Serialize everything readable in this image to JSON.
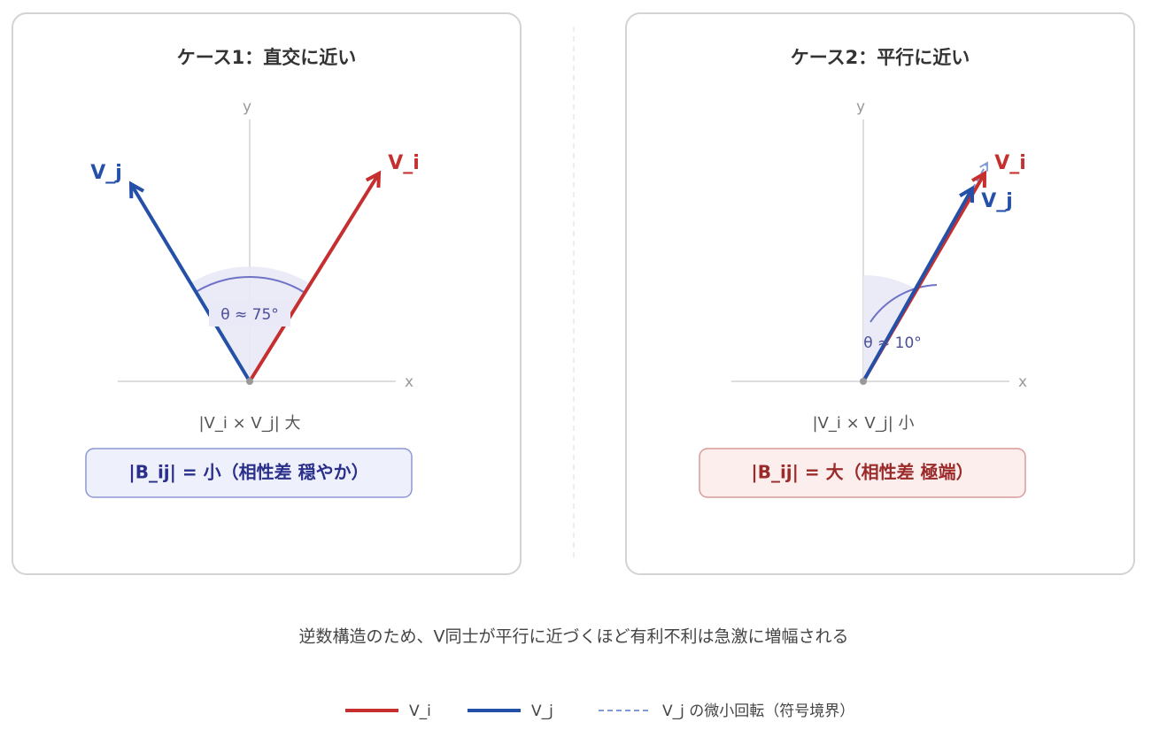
{
  "panels": [
    {
      "title": "ケース1：直交に近い",
      "axis_x": "x",
      "axis_y": "y",
      "vector_i": "V_i",
      "vector_j": "V_j",
      "angle": "θ ≈ 75°",
      "cross": "|V_i × V_j| 大",
      "result": "|B_ij| = 小（相性差 穏やか）"
    },
    {
      "title": "ケース2：平行に近い",
      "axis_x": "x",
      "axis_y": "y",
      "vector_i": "V_i",
      "vector_j": "V_j",
      "angle": "θ ≈ 10°",
      "cross": "|V_i × V_j| 小",
      "result": "|B_ij| = 大（相性差 極端）"
    }
  ],
  "caption": "逆数構造のため、V同士が平行に近づくほど有利不利は急激に増幅される",
  "legend": [
    "V_i",
    "V_j",
    "V_j の微小回転（符号境界）"
  ]
}
